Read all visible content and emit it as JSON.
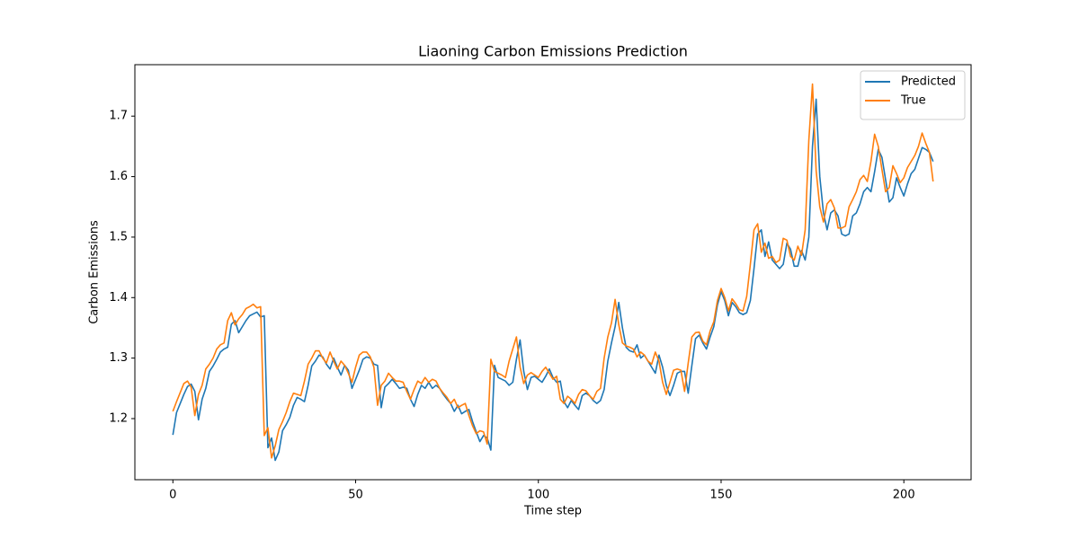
{
  "chart_data": {
    "type": "line",
    "title": "Liaoning Carbon Emissions Prediction",
    "x_label": "Time step",
    "y_label": "Carbon Emissions",
    "x": [
      0,
      1,
      2,
      3,
      4,
      5,
      6,
      7,
      8,
      9,
      10,
      11,
      12,
      13,
      14,
      15,
      16,
      17,
      18,
      19,
      20,
      21,
      22,
      23,
      24,
      25,
      26,
      27,
      28,
      29,
      30,
      31,
      32,
      33,
      34,
      35,
      36,
      37,
      38,
      39,
      40,
      41,
      42,
      43,
      44,
      45,
      46,
      47,
      48,
      49,
      50,
      51,
      52,
      53,
      54,
      55,
      56,
      57,
      58,
      59,
      60,
      61,
      62,
      63,
      64,
      65,
      66,
      67,
      68,
      69,
      70,
      71,
      72,
      73,
      74,
      75,
      76,
      77,
      78,
      79,
      80,
      81,
      82,
      83,
      84,
      85,
      86,
      87,
      88,
      89,
      90,
      91,
      92,
      93,
      94,
      95,
      96,
      97,
      98,
      99,
      100,
      101,
      102,
      103,
      104,
      105,
      106,
      107,
      108,
      109,
      110,
      111,
      112,
      113,
      114,
      115,
      116,
      117,
      118,
      119,
      120,
      121,
      122,
      123,
      124,
      125,
      126,
      127,
      128,
      129,
      130,
      131,
      132,
      133,
      134,
      135,
      136,
      137,
      138,
      139,
      140,
      141,
      142,
      143,
      144,
      145,
      146,
      147,
      148,
      149,
      150,
      151,
      152,
      153,
      154,
      155,
      156,
      157,
      158,
      159,
      160,
      161,
      162,
      163,
      164,
      165,
      166,
      167,
      168,
      169,
      170,
      171,
      172,
      173,
      174,
      175,
      176,
      177,
      178,
      179,
      180,
      181,
      182,
      183,
      184,
      185,
      186,
      187,
      188,
      189,
      190,
      191,
      192,
      193,
      194,
      195,
      196,
      197,
      198,
      199,
      200,
      201,
      202,
      203,
      204,
      205,
      206,
      207,
      208
    ],
    "series": [
      {
        "name": "Predicted",
        "color": "#1f77b4",
        "values": [
          1.173,
          1.21,
          1.225,
          1.24,
          1.253,
          1.257,
          1.245,
          1.198,
          1.232,
          1.25,
          1.278,
          1.287,
          1.298,
          1.31,
          1.315,
          1.318,
          1.356,
          1.362,
          1.342,
          1.352,
          1.362,
          1.37,
          1.373,
          1.376,
          1.368,
          1.37,
          1.152,
          1.168,
          1.131,
          1.145,
          1.18,
          1.19,
          1.202,
          1.222,
          1.235,
          1.232,
          1.228,
          1.255,
          1.287,
          1.295,
          1.305,
          1.302,
          1.29,
          1.282,
          1.3,
          1.285,
          1.272,
          1.288,
          1.28,
          1.25,
          1.265,
          1.28,
          1.298,
          1.302,
          1.3,
          1.29,
          1.288,
          1.218,
          1.252,
          1.258,
          1.265,
          1.258,
          1.25,
          1.252,
          1.25,
          1.232,
          1.22,
          1.24,
          1.255,
          1.25,
          1.26,
          1.25,
          1.255,
          1.25,
          1.24,
          1.232,
          1.225,
          1.212,
          1.222,
          1.208,
          1.212,
          1.215,
          1.195,
          1.178,
          1.162,
          1.172,
          1.168,
          1.148,
          1.288,
          1.268,
          1.265,
          1.262,
          1.255,
          1.26,
          1.298,
          1.33,
          1.278,
          1.248,
          1.268,
          1.27,
          1.265,
          1.26,
          1.27,
          1.282,
          1.268,
          1.26,
          1.262,
          1.228,
          1.218,
          1.23,
          1.222,
          1.215,
          1.238,
          1.242,
          1.238,
          1.23,
          1.225,
          1.23,
          1.248,
          1.295,
          1.325,
          1.352,
          1.392,
          1.35,
          1.318,
          1.312,
          1.31,
          1.322,
          1.3,
          1.305,
          1.295,
          1.285,
          1.275,
          1.305,
          1.285,
          1.255,
          1.238,
          1.255,
          1.275,
          1.278,
          1.278,
          1.242,
          1.288,
          1.332,
          1.338,
          1.325,
          1.315,
          1.335,
          1.352,
          1.388,
          1.41,
          1.395,
          1.37,
          1.392,
          1.385,
          1.375,
          1.372,
          1.375,
          1.395,
          1.448,
          1.505,
          1.512,
          1.468,
          1.492,
          1.462,
          1.455,
          1.448,
          1.455,
          1.49,
          1.48,
          1.452,
          1.452,
          1.478,
          1.462,
          1.5,
          1.65,
          1.728,
          1.6,
          1.54,
          1.512,
          1.54,
          1.545,
          1.535,
          1.505,
          1.502,
          1.505,
          1.535,
          1.54,
          1.555,
          1.575,
          1.582,
          1.575,
          1.608,
          1.645,
          1.632,
          1.595,
          1.558,
          1.565,
          1.598,
          1.582,
          1.568,
          1.588,
          1.605,
          1.612,
          1.63,
          1.648,
          1.645,
          1.64,
          1.625
        ]
      },
      {
        "name": "True",
        "color": "#ff7f0e",
        "values": [
          1.212,
          1.228,
          1.243,
          1.258,
          1.262,
          1.252,
          1.205,
          1.24,
          1.255,
          1.282,
          1.29,
          1.3,
          1.315,
          1.322,
          1.325,
          1.362,
          1.375,
          1.355,
          1.365,
          1.372,
          1.382,
          1.385,
          1.389,
          1.383,
          1.385,
          1.172,
          1.185,
          1.135,
          1.155,
          1.182,
          1.195,
          1.21,
          1.228,
          1.242,
          1.24,
          1.238,
          1.262,
          1.29,
          1.3,
          1.312,
          1.312,
          1.3,
          1.292,
          1.31,
          1.295,
          1.282,
          1.295,
          1.288,
          1.275,
          1.26,
          1.285,
          1.305,
          1.31,
          1.31,
          1.302,
          1.285,
          1.222,
          1.255,
          1.262,
          1.275,
          1.268,
          1.262,
          1.262,
          1.26,
          1.245,
          1.232,
          1.248,
          1.262,
          1.258,
          1.268,
          1.26,
          1.265,
          1.262,
          1.25,
          1.242,
          1.235,
          1.225,
          1.232,
          1.218,
          1.222,
          1.225,
          1.205,
          1.188,
          1.175,
          1.18,
          1.178,
          1.158,
          1.298,
          1.278,
          1.275,
          1.272,
          1.268,
          1.295,
          1.315,
          1.335,
          1.285,
          1.258,
          1.272,
          1.276,
          1.272,
          1.268,
          1.278,
          1.285,
          1.275,
          1.265,
          1.27,
          1.232,
          1.225,
          1.237,
          1.232,
          1.225,
          1.24,
          1.248,
          1.246,
          1.238,
          1.232,
          1.245,
          1.25,
          1.3,
          1.335,
          1.358,
          1.397,
          1.355,
          1.325,
          1.32,
          1.318,
          1.315,
          1.302,
          1.31,
          1.305,
          1.295,
          1.29,
          1.31,
          1.295,
          1.26,
          1.24,
          1.26,
          1.28,
          1.282,
          1.28,
          1.245,
          1.292,
          1.335,
          1.342,
          1.343,
          1.328,
          1.322,
          1.345,
          1.36,
          1.395,
          1.415,
          1.4,
          1.378,
          1.398,
          1.39,
          1.38,
          1.378,
          1.402,
          1.455,
          1.512,
          1.522,
          1.475,
          1.49,
          1.465,
          1.468,
          1.458,
          1.462,
          1.498,
          1.495,
          1.468,
          1.462,
          1.485,
          1.47,
          1.512,
          1.66,
          1.753,
          1.61,
          1.55,
          1.525,
          1.555,
          1.562,
          1.548,
          1.515,
          1.515,
          1.518,
          1.55,
          1.562,
          1.575,
          1.595,
          1.602,
          1.592,
          1.625,
          1.67,
          1.65,
          1.612,
          1.575,
          1.582,
          1.618,
          1.605,
          1.59,
          1.598,
          1.615,
          1.625,
          1.635,
          1.65,
          1.672,
          1.655,
          1.64,
          1.592
        ]
      }
    ],
    "xlim": [
      -10.4,
      218.4
    ],
    "ylim": [
      1.099,
      1.785
    ],
    "xticks": [
      0,
      50,
      100,
      150,
      200
    ],
    "yticks": [
      1.2,
      1.3,
      1.4,
      1.5,
      1.6,
      1.7
    ],
    "legend": "upper right"
  }
}
